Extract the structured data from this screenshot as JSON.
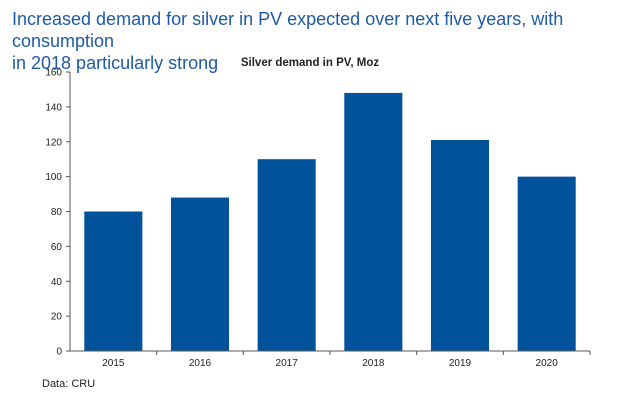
{
  "headline": {
    "line1": "Increased demand for silver in PV expected over next five years, with consumption",
    "line2": "in 2018 particularly strong"
  },
  "source_note": "Data: CRU",
  "colors": {
    "headline": "#1f5aa6",
    "bar": "#00529b",
    "axis": "#595959",
    "text": "#222222"
  },
  "chart_data": {
    "type": "bar",
    "title": "Silver demand in PV, Moz",
    "xlabel": "",
    "ylabel": "",
    "categories": [
      "2015",
      "2016",
      "2017",
      "2018",
      "2019",
      "2020"
    ],
    "values": [
      80,
      88,
      110,
      148,
      121,
      100
    ],
    "ylim": [
      0,
      160
    ],
    "yticks": [
      0,
      20,
      40,
      60,
      80,
      100,
      120,
      140,
      160
    ],
    "grid": false,
    "legend": "none"
  }
}
